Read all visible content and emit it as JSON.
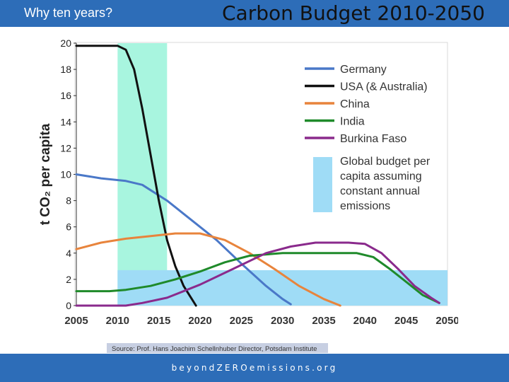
{
  "header": {
    "section_tag": "Why ten years?",
    "title": "Carbon Budget 2010-2050",
    "bar_color": "#2d6db8"
  },
  "footer": {
    "url": "beyondZEROemissions.org"
  },
  "chart_data": {
    "type": "line",
    "ylabel": "t CO₂ per capita",
    "xlim": [
      2005,
      2050
    ],
    "ylim": [
      0,
      20
    ],
    "x_ticks": [
      2005,
      2010,
      2015,
      2020,
      2025,
      2030,
      2035,
      2040,
      2045,
      2050
    ],
    "y_ticks": [
      0,
      2,
      4,
      6,
      8,
      10,
      12,
      14,
      16,
      18,
      20
    ],
    "grid": false,
    "legend_position": "top-right",
    "source": "Source: Prof. Hans Joachim Schellnhuber Director, Potsdam Institute",
    "highlight_band": {
      "x_start": 2010,
      "x_end": 2016,
      "color": "#a8f5df"
    },
    "global_budget": {
      "label": "Global budget per capita assuming constant annual emissions",
      "y": 2.7,
      "x_start": 2010,
      "x_end": 2050,
      "color": "#9fdcf6"
    },
    "series": [
      {
        "name": "Germany",
        "color": "#4a78c8",
        "points": [
          [
            2005,
            10
          ],
          [
            2008,
            9.7
          ],
          [
            2011,
            9.5
          ],
          [
            2013,
            9.2
          ],
          [
            2016,
            8
          ],
          [
            2019,
            6.5
          ],
          [
            2022,
            5
          ],
          [
            2025,
            3.2
          ],
          [
            2028,
            1.5
          ],
          [
            2030,
            0.5
          ],
          [
            2031,
            0.1
          ]
        ]
      },
      {
        "name": "USA (& Australia)",
        "color": "#111111",
        "points": [
          [
            2005,
            19.8
          ],
          [
            2010,
            19.8
          ],
          [
            2011,
            19.5
          ],
          [
            2012,
            18
          ],
          [
            2013,
            15
          ],
          [
            2014,
            11.5
          ],
          [
            2015,
            8
          ],
          [
            2016,
            5
          ],
          [
            2017,
            3
          ],
          [
            2018,
            1.5
          ],
          [
            2019.5,
            0
          ]
        ]
      },
      {
        "name": "China",
        "color": "#e8843c",
        "points": [
          [
            2005,
            4.3
          ],
          [
            2008,
            4.8
          ],
          [
            2011,
            5.1
          ],
          [
            2014,
            5.3
          ],
          [
            2017,
            5.5
          ],
          [
            2020,
            5.5
          ],
          [
            2023,
            5
          ],
          [
            2026,
            4
          ],
          [
            2029,
            2.8
          ],
          [
            2032,
            1.5
          ],
          [
            2035,
            0.5
          ],
          [
            2037,
            0
          ]
        ]
      },
      {
        "name": "India",
        "color": "#1f8a2a",
        "points": [
          [
            2005,
            1.1
          ],
          [
            2009,
            1.1
          ],
          [
            2011,
            1.2
          ],
          [
            2014,
            1.5
          ],
          [
            2017,
            2
          ],
          [
            2020,
            2.6
          ],
          [
            2023,
            3.3
          ],
          [
            2026,
            3.8
          ],
          [
            2030,
            4
          ],
          [
            2035,
            4
          ],
          [
            2039,
            4
          ],
          [
            2041,
            3.7
          ],
          [
            2043,
            2.8
          ],
          [
            2045,
            1.8
          ],
          [
            2047,
            0.8
          ],
          [
            2049,
            0.2
          ]
        ]
      },
      {
        "name": "Burkina Faso",
        "color": "#8a2a8c",
        "points": [
          [
            2005,
            0
          ],
          [
            2011,
            0
          ],
          [
            2013,
            0.2
          ],
          [
            2016,
            0.6
          ],
          [
            2020,
            1.6
          ],
          [
            2024,
            2.8
          ],
          [
            2028,
            4
          ],
          [
            2031,
            4.5
          ],
          [
            2034,
            4.8
          ],
          [
            2038,
            4.8
          ],
          [
            2040,
            4.7
          ],
          [
            2042,
            4
          ],
          [
            2044,
            2.8
          ],
          [
            2046,
            1.5
          ],
          [
            2048,
            0.6
          ],
          [
            2049,
            0.2
          ]
        ]
      }
    ]
  }
}
